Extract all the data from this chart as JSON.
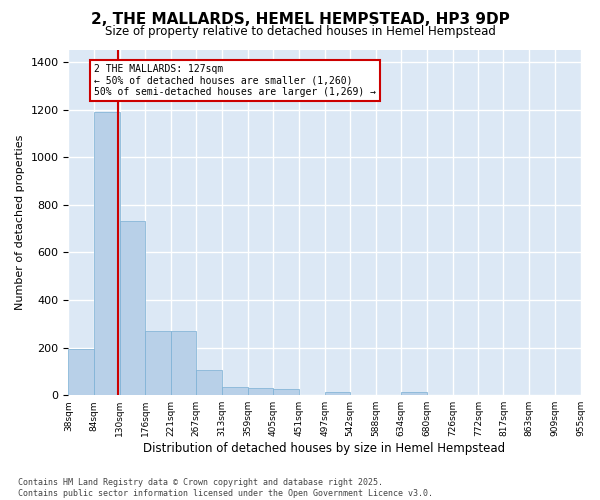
{
  "title": "2, THE MALLARDS, HEMEL HEMPSTEAD, HP3 9DP",
  "subtitle": "Size of property relative to detached houses in Hemel Hempstead",
  "xlabel": "Distribution of detached houses by size in Hemel Hempstead",
  "ylabel": "Number of detached properties",
  "bar_color": "#b8d0e8",
  "bar_edge_color": "#7aafd4",
  "background_color": "#dce8f5",
  "grid_color": "#ffffff",
  "red_line_x": 127,
  "annotation_text": "2 THE MALLARDS: 127sqm\n← 50% of detached houses are smaller (1,260)\n50% of semi-detached houses are larger (1,269) →",
  "annotation_box_color": "#ffffff",
  "annotation_edge_color": "#cc0000",
  "bin_edges": [
    38,
    84,
    130,
    176,
    221,
    267,
    313,
    359,
    405,
    451,
    497,
    542,
    588,
    634,
    680,
    726,
    772,
    817,
    863,
    909,
    955
  ],
  "bin_labels": [
    "38sqm",
    "84sqm",
    "130sqm",
    "176sqm",
    "221sqm",
    "267sqm",
    "313sqm",
    "359sqm",
    "405sqm",
    "451sqm",
    "497sqm",
    "542sqm",
    "588sqm",
    "634sqm",
    "680sqm",
    "726sqm",
    "772sqm",
    "817sqm",
    "863sqm",
    "909sqm",
    "955sqm"
  ],
  "counts": [
    195,
    1190,
    730,
    270,
    270,
    105,
    35,
    30,
    27,
    0,
    15,
    0,
    0,
    15,
    0,
    0,
    0,
    0,
    0,
    0
  ],
  "ylim": [
    0,
    1450
  ],
  "yticks": [
    0,
    200,
    400,
    600,
    800,
    1000,
    1200,
    1400
  ],
  "footer_line1": "Contains HM Land Registry data © Crown copyright and database right 2025.",
  "footer_line2": "Contains public sector information licensed under the Open Government Licence v3.0."
}
